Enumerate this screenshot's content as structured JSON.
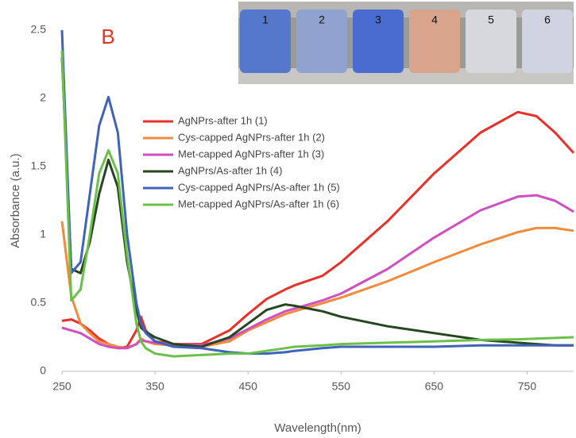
{
  "chart_data": {
    "type": "line",
    "panel_label": "B",
    "x_label": "Wavelength(nm)",
    "y_label": "Absorbance (a.u.)",
    "inset_labels": [
      "1",
      "2",
      "3",
      "4",
      "5",
      "6"
    ],
    "x": [
      250,
      260,
      270,
      280,
      290,
      300,
      310,
      320,
      330,
      335,
      340,
      350,
      370,
      400,
      430,
      450,
      470,
      490,
      500,
      530,
      550,
      600,
      650,
      700,
      740,
      760,
      780,
      800
    ],
    "xlim": [
      250,
      800
    ],
    "xticks": [
      250,
      350,
      450,
      550,
      650,
      750
    ],
    "ylim": [
      0,
      2.5
    ],
    "yticks": [
      0,
      0.5,
      1,
      1.5,
      2,
      2.5
    ],
    "grid": false,
    "legend": "left",
    "series": [
      {
        "name": "AgNPrs-after 1h (1)",
        "color": "#e8302a",
        "values": [
          0.37,
          0.38,
          0.35,
          0.3,
          0.24,
          0.2,
          0.17,
          0.18,
          0.3,
          0.4,
          0.3,
          0.22,
          0.2,
          0.2,
          0.3,
          0.42,
          0.53,
          0.6,
          0.63,
          0.7,
          0.8,
          1.1,
          1.45,
          1.75,
          1.9,
          1.87,
          1.75,
          1.6
        ]
      },
      {
        "name": "Cys-capped AgNPrs-after 1h (2)",
        "color": "#f28a3c",
        "values": [
          1.1,
          0.55,
          0.35,
          0.28,
          0.22,
          0.2,
          0.18,
          0.17,
          0.2,
          0.24,
          0.22,
          0.2,
          0.19,
          0.18,
          0.22,
          0.3,
          0.36,
          0.42,
          0.44,
          0.5,
          0.54,
          0.66,
          0.8,
          0.93,
          1.02,
          1.05,
          1.05,
          1.03
        ]
      },
      {
        "name": "Met-capped AgNPrs-after 1h (3)",
        "color": "#cf4fc0",
        "values": [
          0.32,
          0.3,
          0.28,
          0.24,
          0.2,
          0.18,
          0.17,
          0.17,
          0.2,
          0.23,
          0.22,
          0.21,
          0.2,
          0.19,
          0.24,
          0.31,
          0.38,
          0.44,
          0.46,
          0.52,
          0.57,
          0.75,
          0.98,
          1.18,
          1.28,
          1.29,
          1.25,
          1.17
        ]
      },
      {
        "name": "AgNPrs/As-after 1h (4)",
        "color": "#25461f",
        "values": [
          2.3,
          0.75,
          0.72,
          0.95,
          1.3,
          1.55,
          1.35,
          0.8,
          0.45,
          0.32,
          0.29,
          0.25,
          0.2,
          0.18,
          0.25,
          0.35,
          0.45,
          0.49,
          0.48,
          0.44,
          0.4,
          0.33,
          0.28,
          0.23,
          0.21,
          0.2,
          0.19,
          0.19
        ]
      },
      {
        "name": "Cys-capped AgNPrs/As-after 1h (5)",
        "color": "#3f63b8",
        "values": [
          2.5,
          0.72,
          0.8,
          1.3,
          1.8,
          2.01,
          1.75,
          1.0,
          0.5,
          0.35,
          0.28,
          0.22,
          0.18,
          0.17,
          0.14,
          0.13,
          0.13,
          0.14,
          0.15,
          0.17,
          0.18,
          0.18,
          0.18,
          0.19,
          0.19,
          0.19,
          0.19,
          0.19
        ]
      },
      {
        "name": "Met-capped AgNPrs/As-after 1h (6)",
        "color": "#6cc04a",
        "values": [
          2.35,
          0.52,
          0.6,
          1.0,
          1.45,
          1.62,
          1.45,
          0.85,
          0.35,
          0.22,
          0.17,
          0.13,
          0.11,
          0.12,
          0.13,
          0.13,
          0.15,
          0.17,
          0.18,
          0.19,
          0.2,
          0.21,
          0.22,
          0.23,
          0.235,
          0.24,
          0.245,
          0.25
        ]
      }
    ]
  }
}
